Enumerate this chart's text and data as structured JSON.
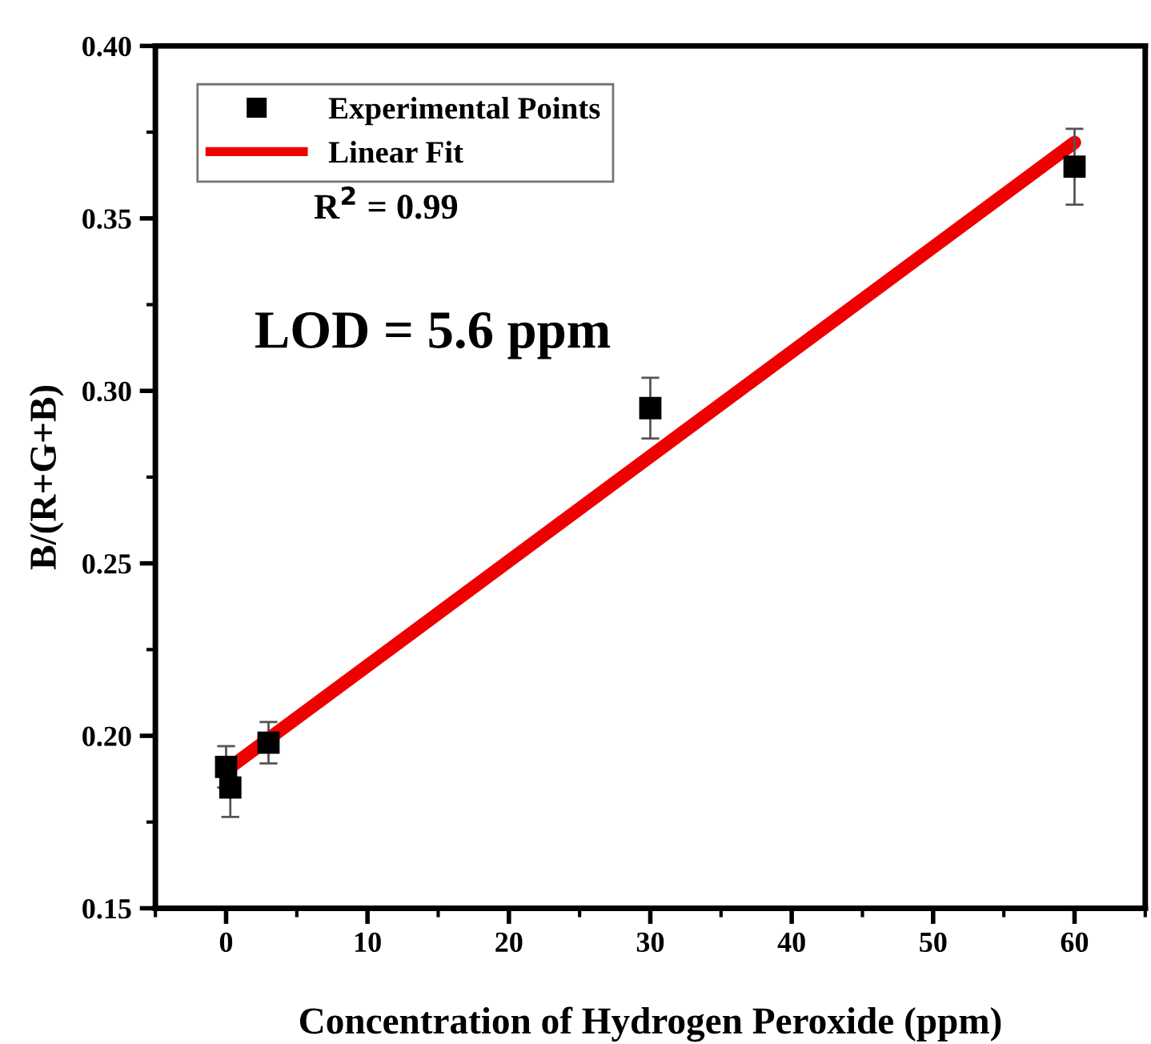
{
  "chart_data": {
    "type": "scatter",
    "xlabel": "Concentration of Hydrogen Peroxide (ppm)",
    "ylabel": "B/(R+G+B)",
    "series": [
      {
        "name": "Experimental Points",
        "color": "#000000",
        "marker": "square",
        "x": [
          0,
          0.3,
          3,
          30,
          60
        ],
        "values": [
          0.191,
          0.185,
          0.198,
          0.295,
          0.365
        ],
        "errors": [
          0.006,
          0.0085,
          0.006,
          0.0088,
          0.011
        ]
      },
      {
        "name": "Linear Fit",
        "type": "line",
        "color": "#ee0000",
        "line_style": "solid",
        "x": [
          0,
          60
        ],
        "values": [
          0.19,
          0.372
        ]
      }
    ],
    "annotations": [
      "R$^{2}$ = 0.99",
      "LOD = 5.6 ppm"
    ],
    "xlim": [
      -5,
      65
    ],
    "ylim": [
      0.15,
      0.4
    ],
    "xticks": [
      0,
      10,
      20,
      30,
      40,
      50,
      60
    ],
    "yticks": [
      0.15,
      {
        "value": 0.2,
        "label": "0.20"
      },
      0.25,
      {
        "value": 0.3,
        "label": "0.30"
      },
      0.35,
      {
        "value": 0.4,
        "label": "0.40"
      }
    ],
    "grid": false,
    "legend": "top left"
  }
}
